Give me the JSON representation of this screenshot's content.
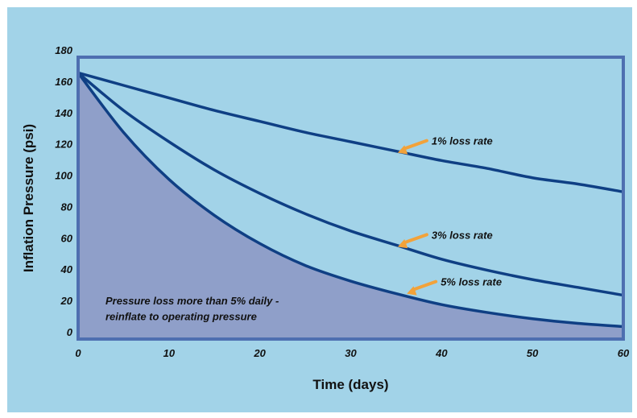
{
  "colors": {
    "background": "#a2d3e8",
    "plot_background": "#a2d3e8",
    "frame": "#4e6fb0",
    "curve": "#0f3f84",
    "shaded_region": "#8f9fc9",
    "arrow": "#f2a23a"
  },
  "chart_data": {
    "type": "line",
    "title": "",
    "xlabel": "Time (days)",
    "ylabel": "Inflation Pressure (psi)",
    "xlim": [
      0,
      60
    ],
    "ylim": [
      0,
      180
    ],
    "x_ticks": [
      0,
      10,
      20,
      30,
      40,
      50,
      60
    ],
    "y_ticks": [
      0,
      20,
      40,
      60,
      80,
      100,
      120,
      140,
      160,
      180
    ],
    "grid": false,
    "legend": "none",
    "series": [
      {
        "name": "1% loss rate",
        "x": [
          0,
          5,
          10,
          15,
          20,
          25,
          30,
          35,
          40,
          45,
          50,
          55,
          60
        ],
        "y": [
          170,
          162,
          154,
          146,
          139,
          132,
          126,
          120,
          114,
          109,
          103,
          99,
          94
        ]
      },
      {
        "name": "3% loss rate",
        "x": [
          0,
          5,
          10,
          15,
          20,
          25,
          30,
          35,
          40,
          45,
          50,
          55,
          60
        ],
        "y": [
          170,
          146,
          126,
          108,
          93,
          80,
          69,
          60,
          51,
          44,
          38,
          33,
          28
        ]
      },
      {
        "name": "5% loss rate",
        "x": [
          0,
          5,
          10,
          15,
          20,
          25,
          30,
          35,
          40,
          45,
          50,
          55,
          60
        ],
        "y": [
          170,
          132,
          102,
          79,
          61,
          47,
          37,
          29,
          22,
          17,
          13,
          10,
          8
        ]
      }
    ],
    "shaded_series": "5% loss rate",
    "annotations": [
      {
        "text": "1% loss rate",
        "x": 35,
        "y": 120
      },
      {
        "text": "3% loss rate",
        "x": 35,
        "y": 60
      },
      {
        "text": "5% loss rate",
        "x": 36,
        "y": 30
      }
    ],
    "region_label": [
      "Pressure loss more than 5% daily -",
      "reinflate to operating pressure"
    ]
  }
}
